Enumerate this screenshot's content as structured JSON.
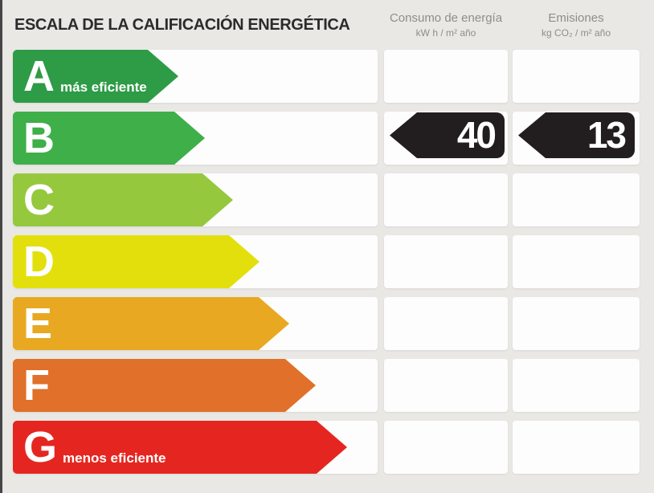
{
  "header": {
    "title": "ESCALA DE LA CALIFICACIÓN ENERGÉTICA",
    "columns": {
      "consumo": {
        "label": "Consumo de energía",
        "units": "kW h / m² año"
      },
      "emisiones": {
        "label": "Emisiones",
        "units": "kg CO₂ / m² año"
      }
    }
  },
  "scale": {
    "badge_color": "#221e1f",
    "rows": [
      {
        "letter": "A",
        "label": "más eficiente",
        "color": "#2e9b47"
      },
      {
        "letter": "B",
        "label": "",
        "color": "#3faf49"
      },
      {
        "letter": "C",
        "label": "",
        "color": "#95c83d"
      },
      {
        "letter": "D",
        "label": "",
        "color": "#e3df0c"
      },
      {
        "letter": "E",
        "label": "",
        "color": "#e9a822"
      },
      {
        "letter": "F",
        "label": "",
        "color": "#e0702a"
      },
      {
        "letter": "G",
        "label": "menos eficiente",
        "color": "#e52620"
      }
    ],
    "rating": {
      "letter": "B",
      "consumo": "40",
      "emisiones": "13"
    }
  },
  "chart_data": {
    "type": "bar",
    "title": "ESCALA DE LA CALIFICACIÓN ENERGÉTICA",
    "categories": [
      "A",
      "B",
      "C",
      "D",
      "E",
      "F",
      "G"
    ],
    "series": [
      {
        "name": "Consumo de energía (kW h / m² año)",
        "values": [
          null,
          40,
          null,
          null,
          null,
          null,
          null
        ]
      },
      {
        "name": "Emisiones (kg CO₂ / m² año)",
        "values": [
          null,
          13,
          null,
          null,
          null,
          null,
          null
        ]
      }
    ],
    "rating_letter": "B",
    "annotations": {
      "A": "más eficiente",
      "G": "menos eficiente"
    },
    "legend_position": "top",
    "grid": false,
    "colors": {
      "A": "#2e9b47",
      "B": "#3faf49",
      "C": "#95c83d",
      "D": "#e3df0c",
      "E": "#e9a822",
      "F": "#e0702a",
      "G": "#e52620",
      "value_badge": "#221e1f",
      "background": "#e9e8e5"
    }
  }
}
